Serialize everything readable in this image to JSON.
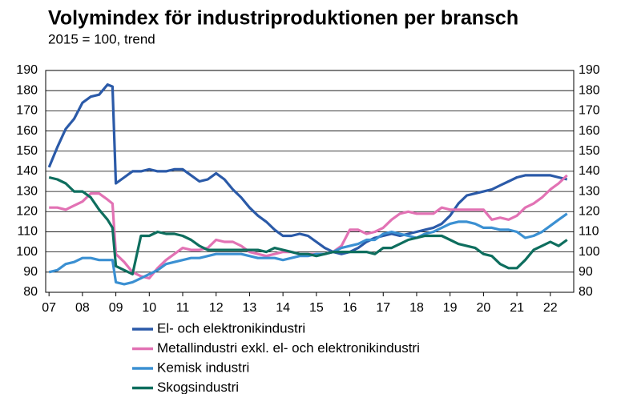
{
  "chart_data": {
    "type": "line",
    "title": "Volymindex för industriproduktionen per bransch",
    "subtitle": "2015 = 100, trend",
    "x": [
      7,
      7.25,
      7.5,
      7.75,
      8,
      8.25,
      8.5,
      8.75,
      8.9,
      9,
      9.25,
      9.5,
      9.75,
      10,
      10.25,
      10.5,
      10.75,
      11,
      11.25,
      11.5,
      11.75,
      12,
      12.25,
      12.5,
      12.75,
      13,
      13.25,
      13.5,
      13.75,
      14,
      14.25,
      14.5,
      14.75,
      15,
      15.25,
      15.5,
      15.75,
      16,
      16.25,
      16.5,
      16.75,
      17,
      17.25,
      17.5,
      17.75,
      18,
      18.25,
      18.5,
      18.75,
      19,
      19.25,
      19.5,
      19.75,
      20,
      20.25,
      20.5,
      20.75,
      21,
      21.25,
      21.5,
      21.75,
      22,
      22.25,
      22.5
    ],
    "series": [
      {
        "name": "El- och elektronikindustri",
        "color": "#2b5aa8",
        "values": [
          142,
          152,
          161,
          166,
          174,
          177,
          178,
          183,
          182,
          134,
          137,
          140,
          140,
          141,
          140,
          140,
          141,
          141,
          138,
          135,
          136,
          139,
          136,
          131,
          127,
          122,
          118,
          115,
          111,
          108,
          108,
          109,
          108,
          105,
          102,
          100,
          99,
          100,
          102,
          105,
          107,
          108,
          109,
          108,
          109,
          110,
          111,
          112,
          114,
          118,
          124,
          128,
          129,
          130,
          131,
          133,
          135,
          137,
          138,
          138,
          138,
          138,
          137,
          136
        ]
      },
      {
        "name": "Metallindustri exkl. el- och elektronikindustri",
        "color": "#e272b4",
        "values": [
          122,
          122,
          121,
          123,
          125,
          129,
          129,
          126,
          124,
          99,
          95,
          90,
          88,
          87,
          92,
          96,
          99,
          102,
          101,
          101,
          102,
          106,
          105,
          105,
          103,
          100,
          99,
          98,
          99,
          100,
          100,
          99,
          99,
          99,
          99,
          100,
          103,
          111,
          111,
          109,
          110,
          112,
          116,
          119,
          120,
          119,
          119,
          119,
          122,
          121,
          121,
          121,
          121,
          121,
          116,
          117,
          116,
          118,
          122,
          124,
          127,
          131,
          134,
          138
        ]
      },
      {
        "name": "Kemisk industri",
        "color": "#3b90d2",
        "values": [
          90,
          91,
          94,
          95,
          97,
          97,
          96,
          96,
          96,
          85,
          84,
          85,
          87,
          89,
          91,
          94,
          95,
          96,
          97,
          97,
          98,
          99,
          99,
          99,
          99,
          98,
          97,
          97,
          97,
          96,
          97,
          98,
          98,
          99,
          99,
          100,
          102,
          103,
          104,
          106,
          106,
          109,
          110,
          109,
          108,
          107,
          109,
          110,
          112,
          114,
          115,
          115,
          114,
          112,
          112,
          111,
          111,
          110,
          107,
          108,
          110,
          113,
          116,
          119
        ]
      },
      {
        "name": "Skogsindustri",
        "color": "#0e6e5e",
        "values": [
          137,
          136,
          134,
          130,
          130,
          127,
          121,
          116,
          112,
          93,
          91,
          89,
          108,
          108,
          110,
          109,
          109,
          108,
          106,
          103,
          101,
          101,
          101,
          101,
          101,
          101,
          101,
          100,
          102,
          101,
          100,
          99,
          99,
          98,
          99,
          100,
          100,
          100,
          100,
          100,
          99,
          102,
          102,
          104,
          106,
          107,
          108,
          108,
          108,
          106,
          104,
          103,
          102,
          99,
          98,
          94,
          92,
          92,
          96,
          101,
          103,
          105,
          103,
          106
        ]
      }
    ],
    "xlim": [
      6.9,
      22.7
    ],
    "xticks": [
      {
        "value": 7,
        "label": "07"
      },
      {
        "value": 8,
        "label": "08"
      },
      {
        "value": 9,
        "label": "09"
      },
      {
        "value": 10,
        "label": "10"
      },
      {
        "value": 11,
        "label": "11"
      },
      {
        "value": 12,
        "label": "12"
      },
      {
        "value": 13,
        "label": "13"
      },
      {
        "value": 14,
        "label": "14"
      },
      {
        "value": 15,
        "label": "15"
      },
      {
        "value": 16,
        "label": "16"
      },
      {
        "value": 17,
        "label": "17"
      },
      {
        "value": 18,
        "label": "18"
      },
      {
        "value": 19,
        "label": "19"
      },
      {
        "value": 20,
        "label": "20"
      },
      {
        "value": 21,
        "label": "21"
      },
      {
        "value": 22,
        "label": "22"
      }
    ],
    "ylim": [
      80,
      190
    ],
    "yticks": [
      80,
      90,
      100,
      110,
      120,
      130,
      140,
      150,
      160,
      170,
      180,
      190
    ],
    "grid": true
  }
}
